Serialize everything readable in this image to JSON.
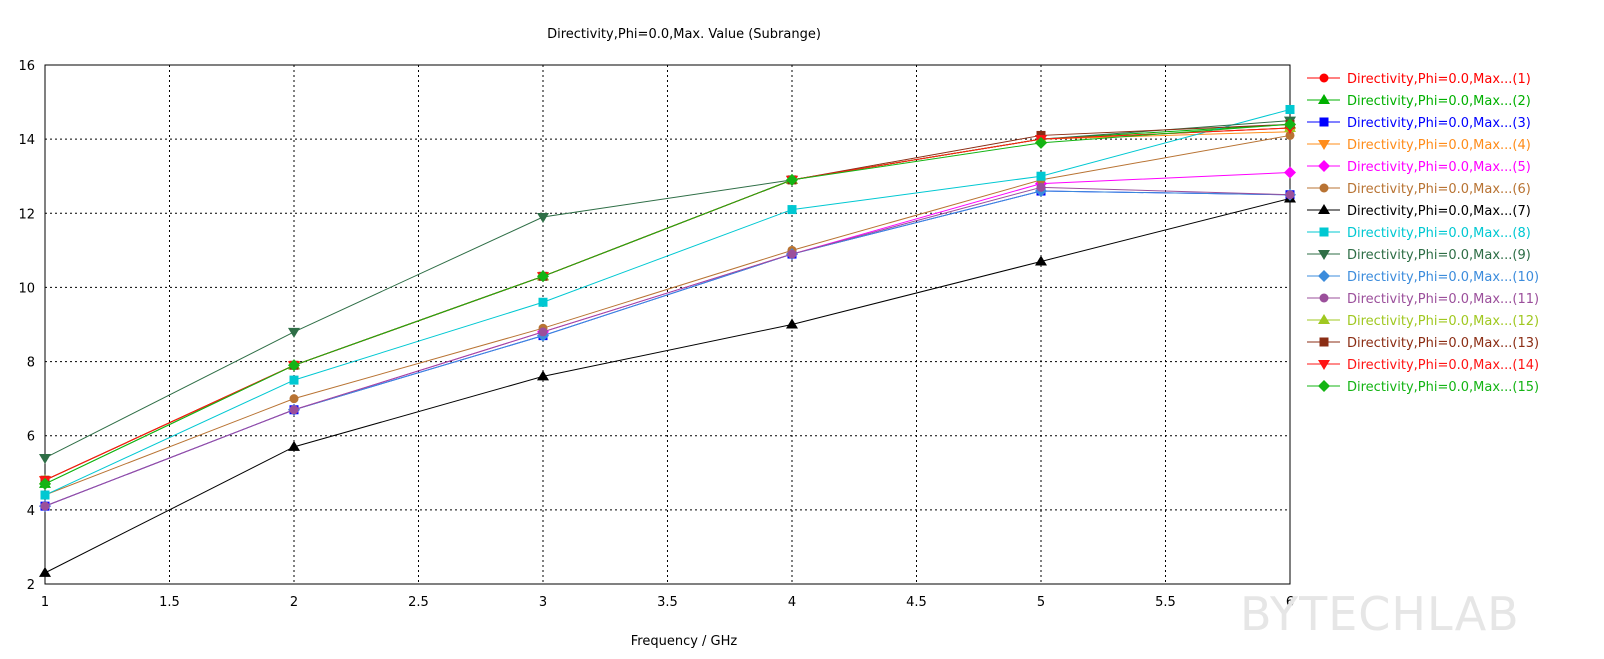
{
  "chart_data": {
    "type": "line",
    "title": "Directivity,Phi=0.0,Max. Value (Subrange)",
    "xlabel": "Frequency / GHz",
    "ylabel": "",
    "xlim": [
      1,
      6
    ],
    "ylim": [
      2,
      16
    ],
    "xticks": [
      1,
      1.5,
      2,
      2.5,
      3,
      3.5,
      4,
      4.5,
      5,
      5.5,
      6
    ],
    "yticks": [
      2,
      4,
      6,
      8,
      10,
      12,
      14,
      16
    ],
    "grid": true,
    "legend_position": "right",
    "x": [
      1,
      2,
      3,
      4,
      5,
      6
    ],
    "series": [
      {
        "name": "Directivity,Phi=0.0,Max...(1)",
        "color": "#ff0000",
        "marker": "circle",
        "values": [
          4.8,
          7.9,
          10.3,
          12.9,
          14.0,
          14.3
        ]
      },
      {
        "name": "Directivity,Phi=0.0,Max...(2)",
        "color": "#00b000",
        "marker": "triangle-up",
        "values": [
          4.7,
          7.9,
          10.3,
          12.9,
          14.0,
          14.4
        ]
      },
      {
        "name": "Directivity,Phi=0.0,Max...(3)",
        "color": "#0000ff",
        "marker": "square",
        "values": [
          4.1,
          6.7,
          8.7,
          10.9,
          12.6,
          12.5
        ]
      },
      {
        "name": "Directivity,Phi=0.0,Max...(4)",
        "color": "#ff8c1a",
        "marker": "triangle-down",
        "values": [
          4.8,
          7.9,
          10.3,
          12.9,
          14.0,
          14.2
        ]
      },
      {
        "name": "Directivity,Phi=0.0,Max...(5)",
        "color": "#ff00ff",
        "marker": "diamond",
        "values": [
          4.1,
          6.7,
          8.8,
          10.9,
          12.8,
          13.1
        ]
      },
      {
        "name": "Directivity,Phi=0.0,Max...(6)",
        "color": "#b87333",
        "marker": "circle",
        "values": [
          4.4,
          7.0,
          8.9,
          11.0,
          12.9,
          14.1
        ]
      },
      {
        "name": "Directivity,Phi=0.0,Max...(7)",
        "color": "#000000",
        "marker": "triangle-up",
        "values": [
          2.3,
          5.7,
          7.6,
          9.0,
          10.7,
          12.4
        ]
      },
      {
        "name": "Directivity,Phi=0.0,Max...(8)",
        "color": "#00c8d2",
        "marker": "square",
        "values": [
          4.4,
          7.5,
          9.6,
          12.1,
          13.0,
          14.8
        ]
      },
      {
        "name": "Directivity,Phi=0.0,Max...(9)",
        "color": "#2e6e46",
        "marker": "triangle-down",
        "values": [
          5.4,
          8.8,
          11.9,
          12.9,
          14.0,
          14.5
        ]
      },
      {
        "name": "Directivity,Phi=0.0,Max...(10)",
        "color": "#3c8cdc",
        "marker": "diamond",
        "values": [
          4.1,
          6.7,
          8.7,
          10.9,
          12.6,
          12.5
        ]
      },
      {
        "name": "Directivity,Phi=0.0,Max...(11)",
        "color": "#9b4f9b",
        "marker": "circle",
        "values": [
          4.1,
          6.7,
          8.8,
          10.9,
          12.7,
          12.5
        ]
      },
      {
        "name": "Directivity,Phi=0.0,Max...(12)",
        "color": "#a0c820",
        "marker": "triangle-up",
        "values": [
          4.8,
          7.9,
          10.3,
          12.9,
          14.0,
          14.3
        ]
      },
      {
        "name": "Directivity,Phi=0.0,Max...(13)",
        "color": "#8b2d14",
        "marker": "square",
        "values": [
          4.8,
          7.9,
          10.3,
          12.9,
          14.1,
          14.4
        ]
      },
      {
        "name": "Directivity,Phi=0.0,Max...(14)",
        "color": "#ff1414",
        "marker": "triangle-down",
        "values": [
          4.8,
          7.9,
          10.3,
          12.9,
          14.0,
          14.3
        ]
      },
      {
        "name": "Directivity,Phi=0.0,Max...(15)",
        "color": "#14b414",
        "marker": "diamond",
        "values": [
          4.7,
          7.9,
          10.3,
          12.9,
          13.9,
          14.4
        ]
      }
    ]
  },
  "watermark": "BYTECHLAB"
}
